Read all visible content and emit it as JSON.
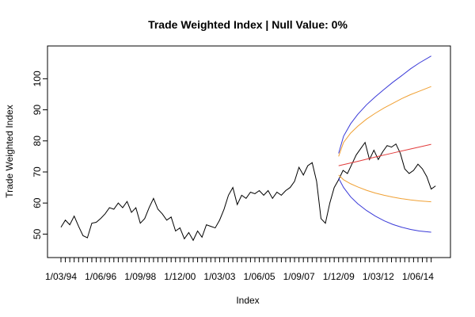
{
  "chart_data": {
    "type": "line",
    "title": "Trade Weighted Index | Null Value: 0%",
    "xlabel": "Index",
    "ylabel": "Trade Weighted Index",
    "ylim": [
      45,
      108
    ],
    "x_range": [
      1994.17,
      2015.5
    ],
    "yticks": [
      50,
      60,
      70,
      80,
      90,
      100
    ],
    "xtick_labels": [
      "1/03/94",
      "1/06/96",
      "1/09/98",
      "1/12/00",
      "1/03/03",
      "1/06/05",
      "1/09/07",
      "1/12/09",
      "1/03/12",
      "1/06/14"
    ],
    "xtick_positions": [
      1994.17,
      1996.42,
      1998.67,
      2000.92,
      2003.17,
      2005.42,
      2007.67,
      2009.92,
      2012.17,
      2014.42
    ],
    "minor_ticks": {
      "start": 1994.17,
      "end": 2015.17,
      "step": 0.25
    },
    "grid": false,
    "legend": "none",
    "series": [
      {
        "color": "#000000",
        "points": [
          [
            1994.17,
            52.2
          ],
          [
            1994.42,
            54.5
          ],
          [
            1994.67,
            53.0
          ],
          [
            1994.92,
            55.8
          ],
          [
            1995.17,
            52.5
          ],
          [
            1995.42,
            49.5
          ],
          [
            1995.67,
            48.8
          ],
          [
            1995.92,
            53.5
          ],
          [
            1996.17,
            53.8
          ],
          [
            1996.42,
            55.0
          ],
          [
            1996.67,
            56.5
          ],
          [
            1996.92,
            58.5
          ],
          [
            1997.17,
            58.0
          ],
          [
            1997.42,
            60.0
          ],
          [
            1997.67,
            58.5
          ],
          [
            1997.92,
            60.5
          ],
          [
            1998.17,
            57.0
          ],
          [
            1998.42,
            58.5
          ],
          [
            1998.67,
            53.5
          ],
          [
            1998.92,
            55.0
          ],
          [
            1999.17,
            58.5
          ],
          [
            1999.42,
            61.5
          ],
          [
            1999.67,
            58.0
          ],
          [
            1999.92,
            56.5
          ],
          [
            2000.17,
            54.5
          ],
          [
            2000.42,
            55.5
          ],
          [
            2000.67,
            51.0
          ],
          [
            2000.92,
            52.0
          ],
          [
            2001.17,
            48.5
          ],
          [
            2001.42,
            50.5
          ],
          [
            2001.67,
            48.0
          ],
          [
            2001.92,
            51.0
          ],
          [
            2002.17,
            49.0
          ],
          [
            2002.42,
            53.0
          ],
          [
            2002.67,
            52.5
          ],
          [
            2002.92,
            52.0
          ],
          [
            2003.17,
            54.5
          ],
          [
            2003.42,
            58.0
          ],
          [
            2003.67,
            62.5
          ],
          [
            2003.92,
            65.0
          ],
          [
            2004.17,
            59.5
          ],
          [
            2004.42,
            62.5
          ],
          [
            2004.67,
            61.5
          ],
          [
            2004.92,
            63.5
          ],
          [
            2005.17,
            63.0
          ],
          [
            2005.42,
            64.0
          ],
          [
            2005.67,
            62.5
          ],
          [
            2005.92,
            64.0
          ],
          [
            2006.17,
            61.5
          ],
          [
            2006.42,
            63.5
          ],
          [
            2006.67,
            62.5
          ],
          [
            2006.92,
            64.0
          ],
          [
            2007.17,
            65.0
          ],
          [
            2007.42,
            67.0
          ],
          [
            2007.67,
            71.5
          ],
          [
            2007.92,
            69.0
          ],
          [
            2008.17,
            72.0
          ],
          [
            2008.42,
            73.0
          ],
          [
            2008.67,
            67.0
          ],
          [
            2008.92,
            55.0
          ],
          [
            2009.17,
            53.5
          ],
          [
            2009.42,
            60.0
          ],
          [
            2009.67,
            65.0
          ],
          [
            2009.92,
            67.5
          ],
          [
            2010.17,
            70.5
          ],
          [
            2010.42,
            69.5
          ],
          [
            2010.67,
            72.5
          ],
          [
            2010.92,
            75.5
          ],
          [
            2011.17,
            77.5
          ],
          [
            2011.42,
            79.5
          ],
          [
            2011.67,
            74.0
          ],
          [
            2011.92,
            77.0
          ],
          [
            2012.17,
            74.0
          ],
          [
            2012.42,
            76.5
          ],
          [
            2012.67,
            78.5
          ],
          [
            2012.92,
            78.0
          ],
          [
            2013.17,
            79.0
          ],
          [
            2013.42,
            76.0
          ],
          [
            2013.67,
            71.0
          ],
          [
            2013.92,
            69.5
          ],
          [
            2014.17,
            70.5
          ],
          [
            2014.42,
            72.5
          ],
          [
            2014.67,
            71.0
          ],
          [
            2014.92,
            68.5
          ],
          [
            2015.17,
            64.5
          ],
          [
            2015.42,
            65.5
          ]
        ]
      },
      {
        "color": "#e23b3b",
        "points": [
          [
            2009.92,
            72.0
          ],
          [
            2011.0,
            73.4
          ],
          [
            2012.0,
            74.8
          ],
          [
            2013.0,
            76.1
          ],
          [
            2014.0,
            77.4
          ],
          [
            2015.17,
            78.9
          ]
        ]
      },
      {
        "color": "#f0a033",
        "points": [
          [
            2009.92,
            75.0
          ],
          [
            2010.2,
            79.5
          ],
          [
            2010.6,
            82.5
          ],
          [
            2011.0,
            84.7
          ],
          [
            2011.5,
            87.0
          ],
          [
            2012.0,
            88.9
          ],
          [
            2012.5,
            90.6
          ],
          [
            2013.0,
            92.1
          ],
          [
            2013.5,
            93.6
          ],
          [
            2014.0,
            94.9
          ],
          [
            2014.5,
            96.0
          ],
          [
            2015.17,
            97.5
          ]
        ]
      },
      {
        "color": "#f0a033",
        "points": [
          [
            2009.92,
            69.0
          ],
          [
            2010.2,
            67.5
          ],
          [
            2010.6,
            66.2
          ],
          [
            2011.0,
            65.2
          ],
          [
            2011.5,
            64.1
          ],
          [
            2012.0,
            63.2
          ],
          [
            2012.5,
            62.5
          ],
          [
            2013.0,
            61.9
          ],
          [
            2013.5,
            61.4
          ],
          [
            2014.0,
            61.0
          ],
          [
            2014.5,
            60.7
          ],
          [
            2015.17,
            60.4
          ]
        ]
      },
      {
        "color": "#3a3ad8",
        "points": [
          [
            2009.92,
            76.0
          ],
          [
            2010.2,
            81.5
          ],
          [
            2010.6,
            85.5
          ],
          [
            2011.0,
            88.5
          ],
          [
            2011.5,
            91.6
          ],
          [
            2012.0,
            94.2
          ],
          [
            2012.5,
            96.6
          ],
          [
            2013.0,
            98.9
          ],
          [
            2013.5,
            101.0
          ],
          [
            2014.0,
            103.2
          ],
          [
            2014.5,
            105.1
          ],
          [
            2015.17,
            107.3
          ]
        ]
      },
      {
        "color": "#3a3ad8",
        "points": [
          [
            2009.92,
            68.0
          ],
          [
            2010.2,
            65.0
          ],
          [
            2010.6,
            62.0
          ],
          [
            2011.0,
            59.8
          ],
          [
            2011.5,
            57.6
          ],
          [
            2012.0,
            55.8
          ],
          [
            2012.5,
            54.3
          ],
          [
            2013.0,
            53.1
          ],
          [
            2013.5,
            52.2
          ],
          [
            2014.0,
            51.5
          ],
          [
            2014.5,
            51.0
          ],
          [
            2015.17,
            50.6
          ]
        ]
      }
    ]
  }
}
